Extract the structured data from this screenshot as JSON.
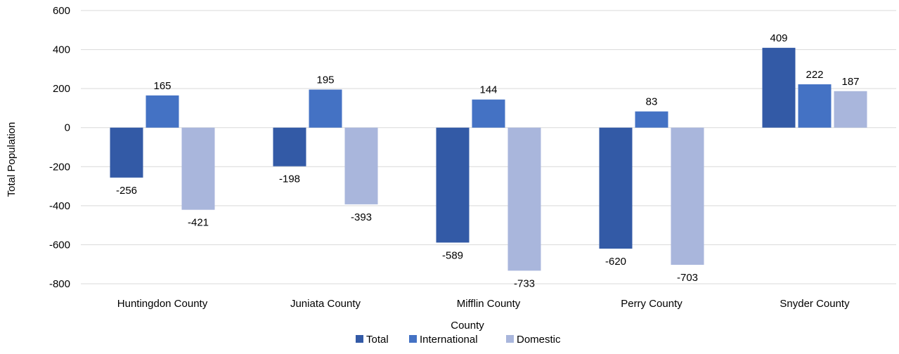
{
  "chart_data": {
    "type": "bar",
    "title": "",
    "xlabel": "County",
    "ylabel": "Total Population",
    "ylim": [
      -800,
      600
    ],
    "yticks": [
      600,
      400,
      200,
      0,
      -200,
      -400,
      -600,
      -800
    ],
    "grid": true,
    "legend_position": "bottom",
    "categories": [
      "Huntingdon County",
      "Juniata County",
      "Mifflin County",
      "Perry County",
      "Snyder County"
    ],
    "series": [
      {
        "name": "Total",
        "color": "#335aa6",
        "values": [
          -256,
          -198,
          -589,
          -620,
          409
        ]
      },
      {
        "name": "International",
        "color": "#4472c4",
        "values": [
          165,
          195,
          144,
          83,
          222
        ]
      },
      {
        "name": "Domestic",
        "color": "#a9b6dc",
        "values": [
          -421,
          -393,
          -733,
          -703,
          187
        ]
      }
    ]
  }
}
